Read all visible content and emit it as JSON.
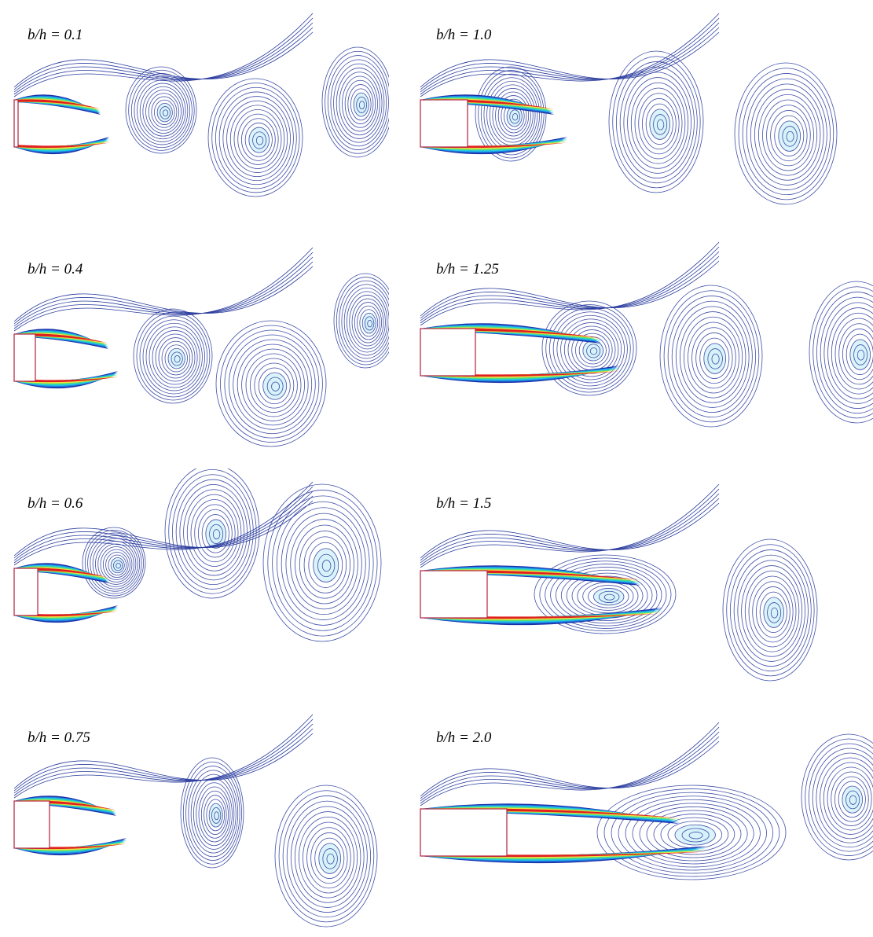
{
  "panels": [
    {
      "label": "b/h = 0.1"
    },
    {
      "label": "b/h = 0.4"
    },
    {
      "label": "b/h = 0.6"
    },
    {
      "label": "b/h = 0.75"
    },
    {
      "label": "b/h = 1.0"
    },
    {
      "label": "b/h = 1.25"
    },
    {
      "label": "b/h = 1.5"
    },
    {
      "label": "b/h = 2.0"
    }
  ]
}
